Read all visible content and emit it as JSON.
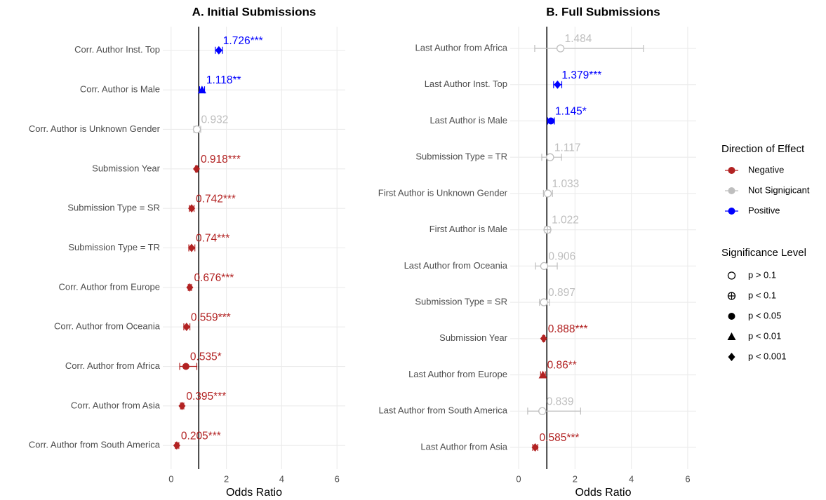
{
  "chart_data": [
    {
      "type": "forest",
      "title": "A. Initial Submissions",
      "x_label": "Odds Ratio",
      "categories": [
        "Corr. Author Inst. Top",
        "Corr. Author is Male",
        "Corr. Author is Unknown Gender",
        "Submission Year",
        "Submission Type = SR",
        "Submission Type = TR",
        "Corr. Author from Europe",
        "Corr. Author from Oceania",
        "Corr. Author from Africa",
        "Corr. Author from Asia",
        "Corr. Author from South America"
      ],
      "values": [
        1.726,
        1.118,
        0.932,
        0.918,
        0.742,
        0.74,
        0.676,
        0.559,
        0.535,
        0.395,
        0.205
      ],
      "value_labels": [
        "1.726***",
        "1.118**",
        "0.932",
        "0.918***",
        "0.742***",
        "0.74***",
        "0.676***",
        "0.559***",
        "0.535*",
        "0.395***",
        "0.205***"
      ],
      "lower": [
        1.6,
        1.03,
        0.82,
        0.88,
        0.66,
        0.64,
        0.62,
        0.46,
        0.31,
        0.34,
        0.15
      ],
      "upper": [
        1.86,
        1.21,
        1.07,
        0.96,
        0.83,
        0.86,
        0.74,
        0.68,
        0.93,
        0.46,
        0.28
      ],
      "direction": [
        "Positive",
        "Positive",
        "Not Signigicant",
        "Negative",
        "Negative",
        "Negative",
        "Negative",
        "Negative",
        "Negative",
        "Negative",
        "Negative"
      ],
      "significance": [
        "p < 0.001",
        "p < 0.01",
        "p > 0.1",
        "p < 0.001",
        "p < 0.001",
        "p < 0.001",
        "p < 0.001",
        "p < 0.001",
        "p < 0.05",
        "p < 0.001",
        "p < 0.001"
      ],
      "reference_line": 1,
      "xlim": [
        -0.3,
        6.3
      ],
      "xticks": [
        0,
        2,
        4,
        6
      ],
      "grid": true
    },
    {
      "type": "forest",
      "title": "B. Full Submissions",
      "x_label": "Odds Ratio",
      "categories": [
        "Last Author from Africa",
        "Last Author Inst. Top",
        "Last Author is Male",
        "Submission Type = TR",
        "First Author is Unknown Gender",
        "First Author is Male",
        "Last Author from Oceania",
        "Submission Type = SR",
        "Submission Year",
        "Last Author from Europe",
        "Last Author from South America",
        "Last Author from Asia"
      ],
      "values": [
        1.484,
        1.379,
        1.145,
        1.117,
        1.033,
        1.022,
        0.906,
        0.897,
        0.888,
        0.86,
        0.839,
        0.585
      ],
      "value_labels": [
        "1.484",
        "1.379***",
        "1.145*",
        "1.117",
        "1.033",
        "1.022",
        "0.906",
        "0.897",
        "0.888***",
        "0.86**",
        "0.839",
        "0.585***"
      ],
      "lower": [
        0.57,
        1.24,
        1.03,
        0.82,
        0.88,
        0.93,
        0.6,
        0.74,
        0.85,
        0.78,
        0.32,
        0.5
      ],
      "upper": [
        4.43,
        1.53,
        1.27,
        1.52,
        1.2,
        1.12,
        1.37,
        1.09,
        0.93,
        0.95,
        2.2,
        0.68
      ],
      "direction": [
        "Not Signigicant",
        "Positive",
        "Positive",
        "Not Signigicant",
        "Not Signigicant",
        "Not Signigicant",
        "Not Signigicant",
        "Not Signigicant",
        "Negative",
        "Negative",
        "Not Signigicant",
        "Negative"
      ],
      "significance": [
        "p > 0.1",
        "p < 0.001",
        "p < 0.05",
        "p > 0.1",
        "p > 0.1",
        "p < 0.1",
        "p > 0.1",
        "p > 0.1",
        "p < 0.001",
        "p < 0.01",
        "p > 0.1",
        "p < 0.001"
      ],
      "reference_line": 1,
      "xlim": [
        -0.3,
        6.3
      ],
      "xticks": [
        0,
        2,
        4,
        6
      ],
      "grid": true
    }
  ],
  "legend": {
    "direction": {
      "title": "Direction of Effect",
      "items": [
        {
          "label": "Negative",
          "color": "#b22222"
        },
        {
          "label": "Not Signigicant",
          "color": "#bebebe"
        },
        {
          "label": "Positive",
          "color": "#0000ff"
        }
      ]
    },
    "significance": {
      "title": "Significance Level",
      "items": [
        {
          "label": "p > 0.1",
          "shape": "open-circle"
        },
        {
          "label": "p < 0.1",
          "shape": "crossed-circle"
        },
        {
          "label": "p < 0.05",
          "shape": "circle"
        },
        {
          "label": "p < 0.01",
          "shape": "triangle"
        },
        {
          "label": "p < 0.001",
          "shape": "diamond"
        }
      ]
    }
  }
}
